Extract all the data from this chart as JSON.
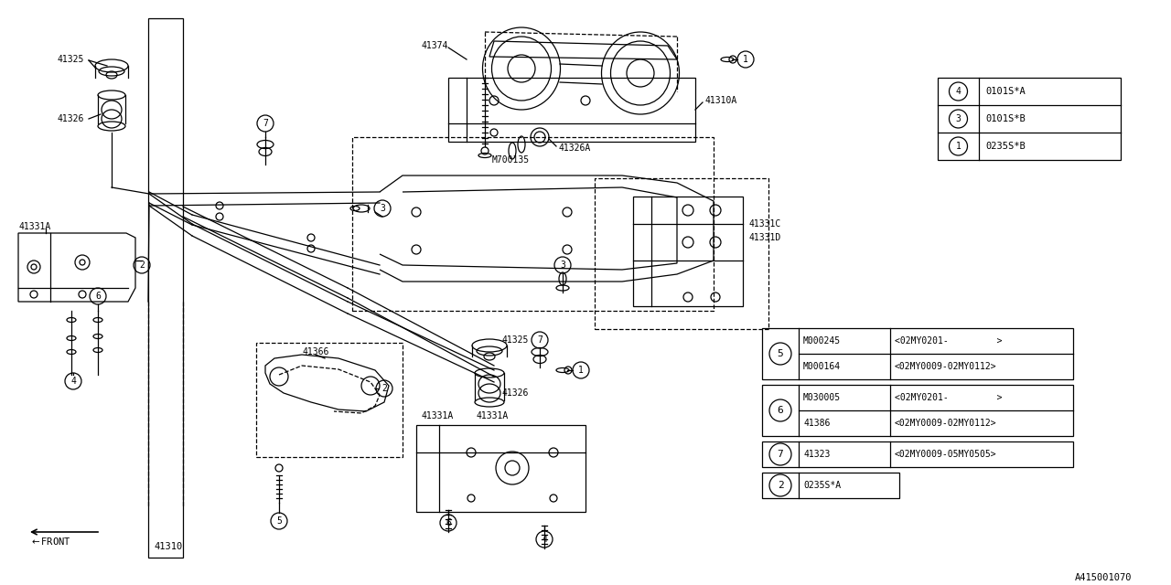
{
  "bg_color": "#ffffff",
  "line_color": "#000000",
  "diagram_id": "A415001070",
  "top_legend": [
    {
      "num": "1",
      "code": "0235S*B"
    },
    {
      "num": "3",
      "code": "0101S*B"
    },
    {
      "num": "4",
      "code": "0101S*A"
    }
  ],
  "bottom_legend_5": [
    [
      "M000164",
      "<02MY0009-02MY0112>"
    ],
    [
      "M000245",
      "<02MY0201-         >"
    ]
  ],
  "bottom_legend_6": [
    [
      "41386",
      "<02MY0009-02MY0112>"
    ],
    [
      "M030005",
      "<02MY0201-         >"
    ]
  ],
  "bottom_legend_7": [
    [
      "41323",
      "<02MY0009-05MY0505>"
    ]
  ],
  "bottom_legend_2": [
    [
      "0235S*A",
      ""
    ]
  ],
  "lw": 0.9,
  "fontsize_label": 7.0,
  "fontsize_legend": 7.5
}
